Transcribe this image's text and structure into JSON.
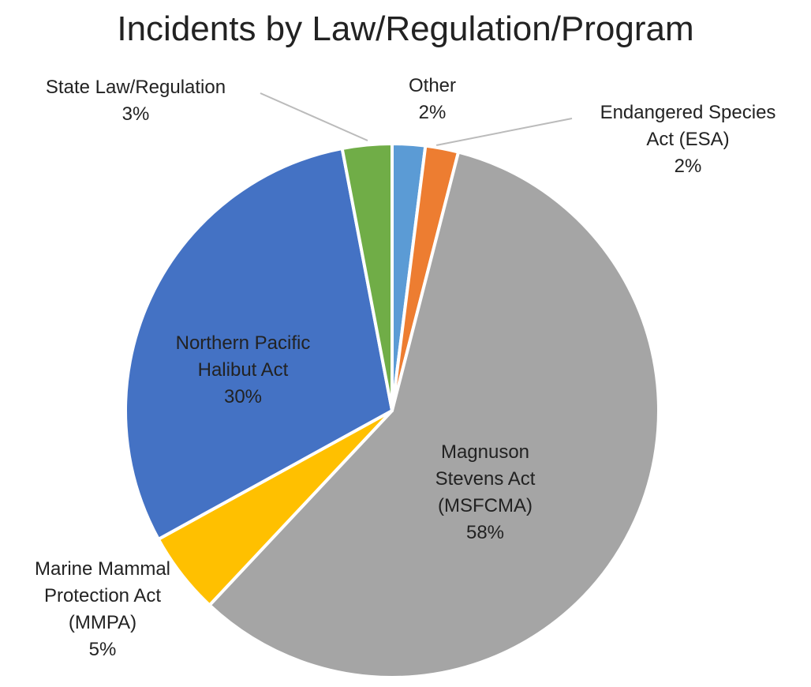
{
  "chart_data": {
    "type": "pie",
    "title": "Incidents by Law/Regulation/Program",
    "categories": [
      "Other",
      "Endangered Species Act (ESA)",
      "Magnuson Stevens Act (MSFCMA)",
      "Marine Mammal Protection Act (MMPA)",
      "Northern Pacific Halibut Act",
      "State Law/Regulation"
    ],
    "values": [
      2,
      2,
      58,
      5,
      30,
      3
    ],
    "value_labels": [
      "2%",
      "2%",
      "58%",
      "5%",
      "30%",
      "3%"
    ],
    "colors": [
      "#5b9bd5",
      "#ed7d31",
      "#a5a5a5",
      "#ffc000",
      "#4472c4",
      "#70ad47"
    ]
  }
}
